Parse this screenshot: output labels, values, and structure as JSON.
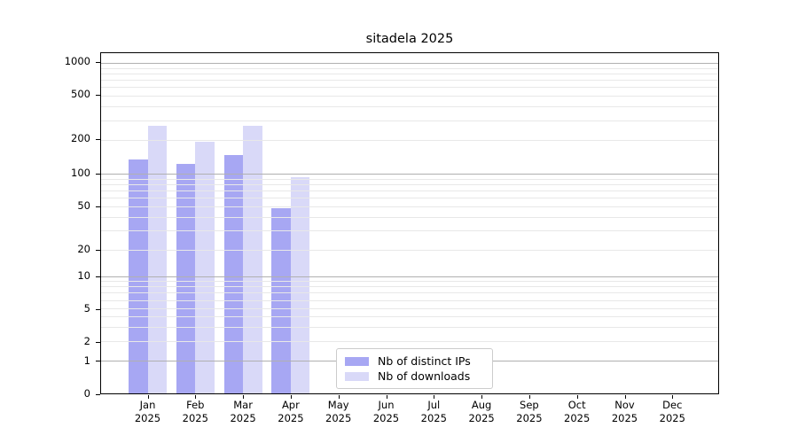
{
  "title": "sitadela 2025",
  "chart_data": {
    "type": "bar",
    "title": "sitadela 2025",
    "categories": [
      "Jan",
      "Feb",
      "Mar",
      "Apr",
      "May",
      "Jun",
      "Jul",
      "Aug",
      "Sep",
      "Oct",
      "Nov",
      "Dec"
    ],
    "category_year": "2025",
    "series": [
      {
        "name": "Nb of distinct IPs",
        "color": "#a7a7f3",
        "values": [
          134,
          122,
          145,
          48,
          0,
          0,
          0,
          0,
          0,
          0,
          0,
          0
        ]
      },
      {
        "name": "Nb of downloads",
        "color": "#d9d9f8",
        "values": [
          265,
          193,
          265,
          93,
          0,
          0,
          0,
          0,
          0,
          0,
          0,
          0
        ]
      }
    ],
    "yscale": "symlog",
    "yticks": [
      0,
      1,
      2,
      5,
      10,
      20,
      50,
      100,
      200,
      500,
      1000
    ],
    "ylim": [
      0,
      1250
    ],
    "grid": {
      "horizontal": true,
      "vertical": false,
      "minor": true,
      "grid_above_bars": true
    },
    "legend": {
      "location": "inside-bottom-center",
      "entries": [
        "Nb of distinct IPs",
        "Nb of downloads"
      ]
    }
  }
}
